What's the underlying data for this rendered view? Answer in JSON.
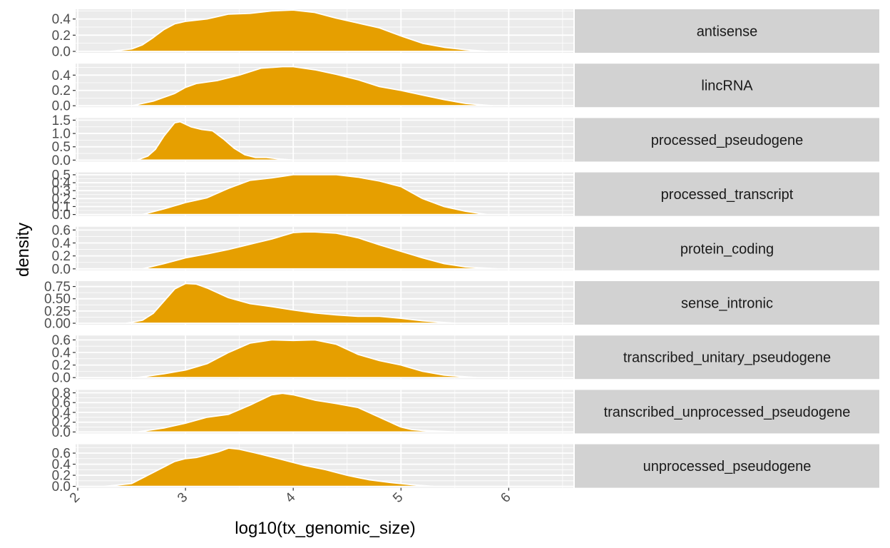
{
  "chart_data": {
    "type": "area",
    "xlabel": "log10(tx_genomic_size)",
    "ylabel": "density",
    "xlim": [
      1.98,
      6.6
    ],
    "x_ticks": [
      2,
      3,
      4,
      5,
      6
    ],
    "x_tick_labels": [
      "2",
      "3",
      "4",
      "5",
      "6"
    ],
    "grid": true,
    "fill_color": "#E69F00",
    "outline_color": "#ffffff",
    "panel_background": "#ebebeb",
    "strip_background": "#d2d2d2",
    "panels": [
      {
        "label": "antisense",
        "ylim": [
          0,
          0.52
        ],
        "y_ticks": [
          0,
          0.2,
          0.4
        ],
        "y_tick_labels": [
          "0.0",
          "0.2",
          "0.4"
        ],
        "x": [
          2.3,
          2.5,
          2.6,
          2.7,
          2.8,
          2.9,
          3.0,
          3.2,
          3.4,
          3.6,
          3.8,
          4.0,
          4.2,
          4.4,
          4.6,
          4.8,
          5.0,
          5.2,
          5.4,
          5.6,
          5.8
        ],
        "y": [
          0.0,
          0.03,
          0.08,
          0.17,
          0.27,
          0.34,
          0.37,
          0.4,
          0.46,
          0.47,
          0.5,
          0.51,
          0.48,
          0.41,
          0.35,
          0.29,
          0.19,
          0.1,
          0.05,
          0.02,
          0.0
        ]
      },
      {
        "label": "lincRNA",
        "ylim": [
          0,
          0.55
        ],
        "y_ticks": [
          0,
          0.2,
          0.4
        ],
        "y_tick_labels": [
          "0.0",
          "0.2",
          "0.4"
        ],
        "x": [
          2.5,
          2.7,
          2.9,
          3.0,
          3.1,
          3.3,
          3.5,
          3.7,
          3.9,
          4.0,
          4.2,
          4.4,
          4.6,
          4.8,
          5.0,
          5.2,
          5.4,
          5.6,
          5.85
        ],
        "y": [
          0.0,
          0.06,
          0.16,
          0.24,
          0.29,
          0.33,
          0.4,
          0.49,
          0.51,
          0.51,
          0.47,
          0.41,
          0.34,
          0.25,
          0.2,
          0.14,
          0.08,
          0.03,
          0.0
        ]
      },
      {
        "label": "processed_pseudogene",
        "ylim": [
          0,
          1.58
        ],
        "y_ticks": [
          0,
          0.5,
          1,
          1.5
        ],
        "y_tick_labels": [
          "0.0",
          "0.5",
          "1.0",
          "1.5"
        ],
        "x": [
          2.55,
          2.65,
          2.72,
          2.8,
          2.9,
          2.95,
          3.05,
          3.15,
          3.25,
          3.35,
          3.45,
          3.55,
          3.65,
          3.75,
          3.85,
          4.0
        ],
        "y": [
          0.0,
          0.15,
          0.4,
          0.9,
          1.4,
          1.44,
          1.25,
          1.15,
          1.1,
          0.8,
          0.45,
          0.2,
          0.1,
          0.1,
          0.05,
          0.0
        ]
      },
      {
        "label": "processed_transcript",
        "ylim": [
          0,
          0.53
        ],
        "y_ticks": [
          0,
          0.1,
          0.2,
          0.3,
          0.4,
          0.5
        ],
        "y_tick_labels": [
          "0.0",
          "0.1",
          "0.2",
          "0.3",
          "0.4",
          "0.5"
        ],
        "x": [
          2.6,
          2.8,
          3.0,
          3.2,
          3.4,
          3.6,
          3.8,
          4.0,
          4.2,
          4.4,
          4.6,
          4.8,
          5.0,
          5.2,
          5.4,
          5.6,
          5.8
        ],
        "y": [
          0.0,
          0.07,
          0.15,
          0.21,
          0.33,
          0.43,
          0.46,
          0.5,
          0.5,
          0.5,
          0.47,
          0.42,
          0.35,
          0.2,
          0.1,
          0.04,
          0.0
        ]
      },
      {
        "label": "protein_coding",
        "ylim": [
          0,
          0.65
        ],
        "y_ticks": [
          0,
          0.2,
          0.4,
          0.6
        ],
        "y_tick_labels": [
          "0.0",
          "0.2",
          "0.4",
          "0.6"
        ],
        "x": [
          2.6,
          2.8,
          3.0,
          3.2,
          3.4,
          3.6,
          3.8,
          4.0,
          4.1,
          4.2,
          4.4,
          4.6,
          4.8,
          5.0,
          5.2,
          5.4,
          5.6,
          5.9
        ],
        "y": [
          0.0,
          0.08,
          0.17,
          0.23,
          0.3,
          0.38,
          0.46,
          0.56,
          0.57,
          0.57,
          0.55,
          0.48,
          0.37,
          0.27,
          0.17,
          0.08,
          0.03,
          0.0
        ]
      },
      {
        "label": "sense_intronic",
        "ylim": [
          0,
          0.86
        ],
        "y_ticks": [
          0,
          0.25,
          0.5,
          0.75
        ],
        "y_tick_labels": [
          "0.00",
          "0.25",
          "0.50",
          "0.75"
        ],
        "x": [
          2.45,
          2.6,
          2.7,
          2.8,
          2.9,
          3.0,
          3.1,
          3.2,
          3.4,
          3.6,
          3.8,
          4.0,
          4.2,
          4.4,
          4.6,
          4.8,
          5.0,
          5.2,
          5.5
        ],
        "y": [
          0.0,
          0.06,
          0.2,
          0.45,
          0.7,
          0.81,
          0.8,
          0.72,
          0.52,
          0.4,
          0.34,
          0.27,
          0.21,
          0.17,
          0.14,
          0.14,
          0.1,
          0.05,
          0.0
        ]
      },
      {
        "label": "transcribed_unitary_pseudogene",
        "ylim": [
          0,
          0.67
        ],
        "y_ticks": [
          0,
          0.2,
          0.4,
          0.6
        ],
        "y_tick_labels": [
          "0.0",
          "0.2",
          "0.4",
          "0.6"
        ],
        "x": [
          2.55,
          2.8,
          3.0,
          3.2,
          3.4,
          3.6,
          3.8,
          4.0,
          4.2,
          4.4,
          4.6,
          4.8,
          5.0,
          5.2,
          5.4,
          5.7
        ],
        "y": [
          0.0,
          0.06,
          0.12,
          0.22,
          0.4,
          0.55,
          0.6,
          0.59,
          0.6,
          0.53,
          0.37,
          0.27,
          0.2,
          0.1,
          0.04,
          0.0
        ]
      },
      {
        "label": "transcribed_unprocessed_pseudogene",
        "ylim": [
          0,
          0.86
        ],
        "y_ticks": [
          0,
          0.2,
          0.4,
          0.6,
          0.8
        ],
        "y_tick_labels": [
          "0.0",
          "0.2",
          "0.4",
          "0.6",
          "0.8"
        ],
        "x": [
          2.55,
          2.8,
          3.0,
          3.2,
          3.4,
          3.6,
          3.8,
          3.9,
          4.0,
          4.2,
          4.4,
          4.6,
          4.8,
          5.0,
          5.1,
          5.2,
          5.5
        ],
        "y": [
          0.0,
          0.08,
          0.18,
          0.3,
          0.36,
          0.55,
          0.76,
          0.79,
          0.76,
          0.65,
          0.58,
          0.5,
          0.3,
          0.1,
          0.05,
          0.03,
          0.0
        ]
      },
      {
        "label": "unprocessed_pseudogene",
        "ylim": [
          0,
          0.76
        ],
        "y_ticks": [
          0,
          0.2,
          0.4,
          0.6
        ],
        "y_tick_labels": [
          "0.0",
          "0.2",
          "0.4",
          "0.6"
        ],
        "x": [
          2.25,
          2.5,
          2.7,
          2.9,
          3.0,
          3.1,
          3.3,
          3.4,
          3.5,
          3.7,
          3.9,
          4.1,
          4.3,
          4.5,
          4.7,
          4.9,
          5.1,
          5.3
        ],
        "y": [
          0.0,
          0.05,
          0.25,
          0.45,
          0.5,
          0.52,
          0.62,
          0.69,
          0.67,
          0.58,
          0.48,
          0.38,
          0.3,
          0.2,
          0.12,
          0.07,
          0.03,
          0.0
        ]
      }
    ]
  }
}
